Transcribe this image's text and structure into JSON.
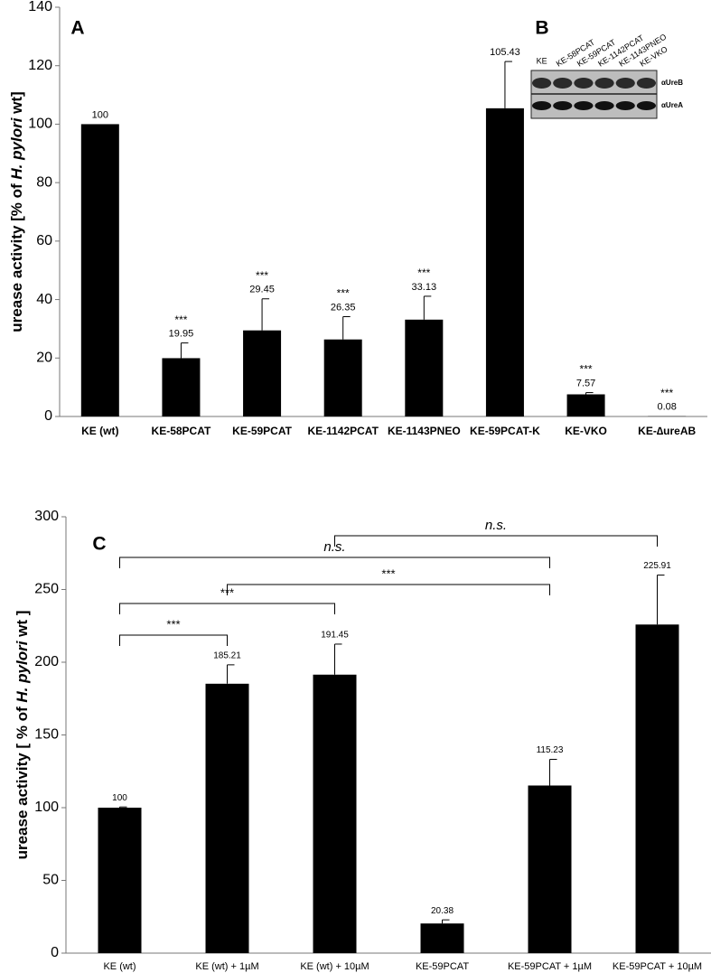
{
  "chart_data": [
    {
      "type": "bar",
      "panel": "A",
      "ylabel": [
        "urease activity [% of ",
        "H. pylori",
        " wt]"
      ],
      "categories": [
        "KE (wt)",
        "KE-58PCAT",
        "KE-59PCAT",
        "KE-1142PCAT",
        "KE-1143PNEO",
        "KE-59PCAT-K",
        "KE-VKO",
        "KE-∆ureAB"
      ],
      "values": [
        100,
        19.95,
        29.45,
        26.35,
        33.13,
        105.43,
        7.57,
        0.08
      ],
      "errors": [
        null,
        5.2,
        10.8,
        7.8,
        8,
        16,
        0.6,
        null
      ],
      "significance": [
        null,
        "***",
        "***",
        "***",
        "***",
        null,
        "***",
        "***"
      ],
      "color": "#000000",
      "ylim": [
        0,
        140
      ],
      "yticks": [
        0,
        20,
        40,
        60,
        80,
        100,
        120,
        140
      ],
      "inset": {
        "label": "B",
        "lanes": [
          "KE",
          "KE-58PCAT",
          "KE-59PCAT",
          "KE-1142PCAT",
          "KE-1143PNEO",
          "KE-VKO"
        ],
        "bands": [
          "αUreB",
          "αUreA"
        ]
      }
    },
    {
      "type": "bar",
      "panel": "C",
      "ylabel": [
        "urease activity [ % of ",
        "H. pylori",
        " wt ]"
      ],
      "categories": [
        "KE (wt)",
        "KE (wt) + 1µM",
        "KE (wt) + 10µM",
        "KE-59PCAT",
        "KE-59PCAT + 1µM",
        "KE-59PCAT + 10µM"
      ],
      "values": [
        100,
        185.21,
        191.45,
        20.38,
        115.23,
        225.91
      ],
      "errors": [
        0.5,
        13,
        21,
        2.5,
        18,
        34
      ],
      "color": "#000000",
      "ylim": [
        0,
        300
      ],
      "yticks": [
        0,
        50,
        100,
        150,
        200,
        250,
        300
      ],
      "comparisons": [
        {
          "from": 0,
          "to": 1,
          "label": "***"
        },
        {
          "from": 0,
          "to": 2,
          "label": "***"
        },
        {
          "from": 1,
          "to": 4,
          "label": "***"
        },
        {
          "from": 0,
          "to": 4,
          "label": "n.s."
        },
        {
          "from": 2,
          "to": 5,
          "label": "n.s."
        }
      ]
    }
  ]
}
